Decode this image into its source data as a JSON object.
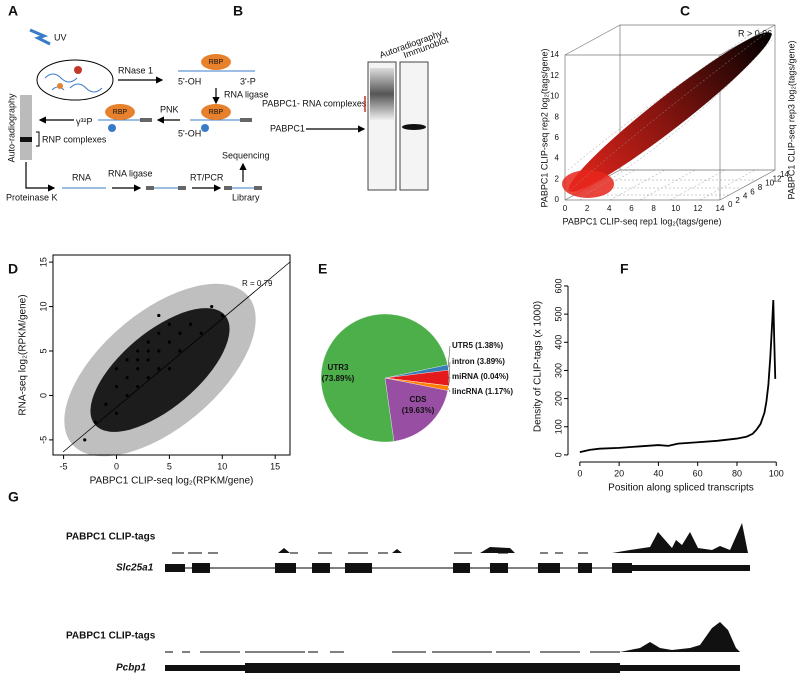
{
  "panel_a": {
    "label": "A",
    "uv": "UV",
    "rnase": "RNase 1",
    "rbp": "RBP",
    "five_oh": "5'-OH",
    "three_p": "3'-P",
    "rna_ligase": "RNA ligase",
    "pnk": "PNK",
    "p32": "γ³²P",
    "autorad": "Auto-radiography",
    "rnp": "RNP complexes",
    "proteinase": "Proteinase K",
    "rna": "RNA",
    "rt_pcr": "RT/PCR",
    "library": "Library",
    "sequencing": "Sequencing"
  },
  "panel_b": {
    "label": "B",
    "lane1": "Autoradiography",
    "lane2": "Immunoblot",
    "complexes": "PABPC1- RNA complexes",
    "pabpc1": "PABPC1"
  },
  "panel_c": {
    "label": "C",
    "annotation": "R > 0.96",
    "xlabel": "PABPC1 CLIP-seq rep1 log₂(tags/gene)",
    "ylabel": "PABPC1 CLIP-seq rep2 log₂(tags/gene)",
    "zlabel": "PABPC1 CLIP-seq rep3 log₂(tags/gene)",
    "xticks": [
      0,
      2,
      4,
      6,
      8,
      10,
      12,
      14
    ],
    "yticks": [
      0,
      2,
      4,
      6,
      8,
      10,
      12,
      14
    ],
    "zticks": [
      0,
      2,
      4,
      6,
      8,
      10,
      12,
      14
    ]
  },
  "chart_data": [
    {
      "type": "scatter",
      "label": "D",
      "xlabel": "PABPC1 CLIP-seq log₂(RPKM/gene)",
      "ylabel": "RNA-seq log₂(RPKM/gene)",
      "annotation": "R = 0.79",
      "x": [
        0,
        1,
        2,
        3,
        4,
        5,
        2,
        3,
        4,
        1,
        0,
        -1,
        6,
        7,
        3,
        5,
        2,
        4,
        -2,
        8,
        9,
        1,
        3,
        6,
        5,
        0,
        2,
        4,
        -3,
        10
      ],
      "y": [
        1,
        2,
        3,
        4,
        5,
        6,
        5,
        2,
        3,
        0,
        3,
        -1,
        7,
        8,
        6,
        3,
        1,
        7,
        -3,
        7,
        10,
        4,
        5,
        5,
        8,
        -2,
        4,
        9,
        -5,
        9
      ],
      "color": "#000000",
      "xlim": [
        -6,
        16.4
      ],
      "ylim": [
        -6.7,
        15.8
      ],
      "xticks": [
        -5,
        0,
        5,
        10,
        15
      ],
      "yticks": [
        -5,
        0,
        5,
        10,
        15
      ]
    },
    {
      "type": "pie",
      "label": "E",
      "categories": [
        "UTR5",
        "intron",
        "miRNA",
        "lincRNA",
        "CDS",
        "UTR3"
      ],
      "values": [
        1.38,
        3.89,
        0.04,
        1.17,
        19.63,
        73.89
      ],
      "value_labels": [
        "(1.38%)",
        "(3.89%)",
        "(0.04%)",
        "(1.17%)",
        "(19.63%)",
        "(73.89%)"
      ],
      "colors": [
        "#377eb8",
        "#e41a1c",
        "#ffff33",
        "#ff7f00",
        "#984ea3",
        "#4daf4a"
      ]
    },
    {
      "type": "line",
      "label": "F",
      "xlabel": "Position along spliced transcripts",
      "ylabel": "Density of CLIP-tags (x 1000)",
      "x": [
        0,
        5,
        10,
        20,
        30,
        40,
        45,
        50,
        60,
        70,
        80,
        85,
        88,
        90,
        92,
        94,
        95,
        96,
        97,
        98,
        98.5,
        99,
        99.5
      ],
      "values": [
        10,
        18,
        22,
        25,
        30,
        35,
        32,
        40,
        45,
        50,
        58,
        65,
        75,
        90,
        110,
        150,
        190,
        250,
        350,
        480,
        550,
        400,
        270
      ],
      "color": "#000000",
      "xlim": [
        -4,
        107
      ],
      "ylim": [
        -11,
        639
      ],
      "xticks": [
        0,
        20,
        40,
        60,
        80,
        100
      ],
      "yticks": [
        0,
        100,
        200,
        300,
        400,
        500,
        600
      ]
    }
  ],
  "panel_g": {
    "label": "G",
    "tracks": [
      {
        "title": "PABPC1 CLIP-tags",
        "gene": "Slc25a1"
      },
      {
        "title": "PABPC1 CLIP-tags",
        "gene": "Pcbp1"
      }
    ]
  }
}
